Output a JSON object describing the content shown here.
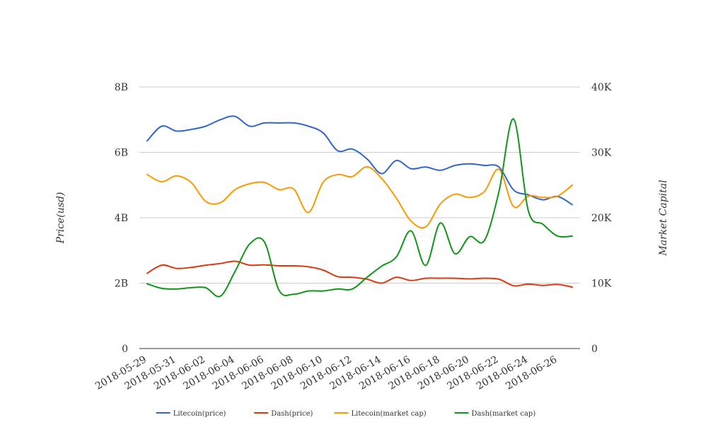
{
  "chart_data": {
    "type": "line",
    "ylabel": "Price(usd)",
    "y2label": "Market Capital",
    "left_axis": {
      "min": 0,
      "max": 8000000000,
      "ticks": [
        0,
        2000000000,
        4000000000,
        6000000000,
        8000000000
      ],
      "tick_labels": [
        "0",
        "2B",
        "4B",
        "6B",
        "8B"
      ]
    },
    "right_axis": {
      "min": 0,
      "max": 40000,
      "ticks": [
        0,
        10000,
        20000,
        30000,
        40000
      ],
      "tick_labels": [
        "0",
        "10K",
        "20K",
        "30K",
        "40K"
      ]
    },
    "grid": true,
    "legend_position": "bottom",
    "x": [
      "2018-05-29",
      "2018-05-30",
      "2018-05-31",
      "2018-06-01",
      "2018-06-02",
      "2018-06-03",
      "2018-06-04",
      "2018-06-05",
      "2018-06-06",
      "2018-06-07",
      "2018-06-08",
      "2018-06-09",
      "2018-06-10",
      "2018-06-11",
      "2018-06-12",
      "2018-06-13",
      "2018-06-14",
      "2018-06-15",
      "2018-06-16",
      "2018-06-17",
      "2018-06-18",
      "2018-06-19",
      "2018-06-20",
      "2018-06-21",
      "2018-06-22",
      "2018-06-23",
      "2018-06-24",
      "2018-06-25",
      "2018-06-26",
      "2018-06-27"
    ],
    "x_tick_labels": [
      "2018-05-29",
      "2018-05-31",
      "2018-06-02",
      "2018-06-04",
      "2018-06-06",
      "2018-06-08",
      "2018-06-10",
      "2018-06-12",
      "2018-06-14",
      "2018-06-16",
      "2018-06-18",
      "2018-06-20",
      "2018-06-22",
      "2018-06-24",
      "2018-06-26"
    ],
    "series": [
      {
        "name": "Litecoin(price)",
        "axis": "left",
        "color": "#3366cc",
        "values": [
          6350000000,
          6800000000,
          6650000000,
          6700000000,
          6800000000,
          7000000000,
          7100000000,
          6800000000,
          6900000000,
          6900000000,
          6900000000,
          6800000000,
          6600000000,
          6050000000,
          6100000000,
          5800000000,
          5350000000,
          5750000000,
          5500000000,
          5550000000,
          5450000000,
          5600000000,
          5650000000,
          5600000000,
          5550000000,
          4850000000,
          4700000000,
          4550000000,
          4650000000,
          4400000000
        ]
      },
      {
        "name": "Dash(price)",
        "axis": "left",
        "color": "#dc3912",
        "values": [
          2300000000,
          2550000000,
          2450000000,
          2480000000,
          2550000000,
          2600000000,
          2670000000,
          2550000000,
          2560000000,
          2530000000,
          2530000000,
          2500000000,
          2400000000,
          2200000000,
          2180000000,
          2120000000,
          2000000000,
          2180000000,
          2080000000,
          2150000000,
          2150000000,
          2150000000,
          2130000000,
          2150000000,
          2120000000,
          1920000000,
          1970000000,
          1930000000,
          1960000000,
          1880000000
        ]
      },
      {
        "name": "Litecoin(market cap)",
        "axis": "right",
        "color": "#ff9900",
        "values": [
          26600,
          25500,
          26400,
          25400,
          22500,
          22300,
          24300,
          25200,
          25400,
          24300,
          24400,
          20800,
          25400,
          26600,
          26300,
          27800,
          26000,
          23000,
          19500,
          18600,
          22100,
          23600,
          23100,
          24000,
          27400,
          21700,
          23300,
          23100,
          23300,
          25000
        ]
      },
      {
        "name": "Dash(market cap)",
        "axis": "right",
        "color": "#109618",
        "values": [
          9900,
          9200,
          9100,
          9300,
          9300,
          8000,
          11800,
          16000,
          16300,
          8900,
          8300,
          8800,
          8800,
          9100,
          9100,
          10900,
          12600,
          14000,
          18000,
          12700,
          19200,
          14500,
          17100,
          16500,
          24000,
          35100,
          21100,
          19000,
          17200,
          17200
        ]
      }
    ]
  }
}
